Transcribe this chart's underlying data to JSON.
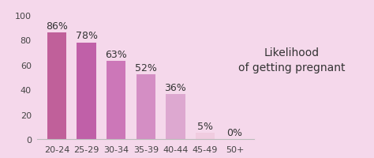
{
  "categories": [
    "20-24",
    "25-29",
    "30-34",
    "35-39",
    "40-44",
    "45-49",
    "50+"
  ],
  "values": [
    86,
    78,
    63,
    52,
    36,
    5,
    0
  ],
  "bar_colors": [
    "#c0609a",
    "#c060a8",
    "#cc77b8",
    "#d48ec4",
    "#dda8d0",
    "#f0cce0",
    "#f5e0ee"
  ],
  "bg_color": "#f5d8eb",
  "ylim": [
    0,
    100
  ],
  "yticks": [
    0,
    20,
    40,
    60,
    80,
    100
  ],
  "labels": [
    "86%",
    "78%",
    "63%",
    "52%",
    "36%",
    "5%",
    "0%"
  ],
  "annotation_text": "Likelihood\nof getting pregnant",
  "annotation_fontsize": 10,
  "label_fontsize": 9,
  "tick_fontsize": 8,
  "label_color": "#333333"
}
